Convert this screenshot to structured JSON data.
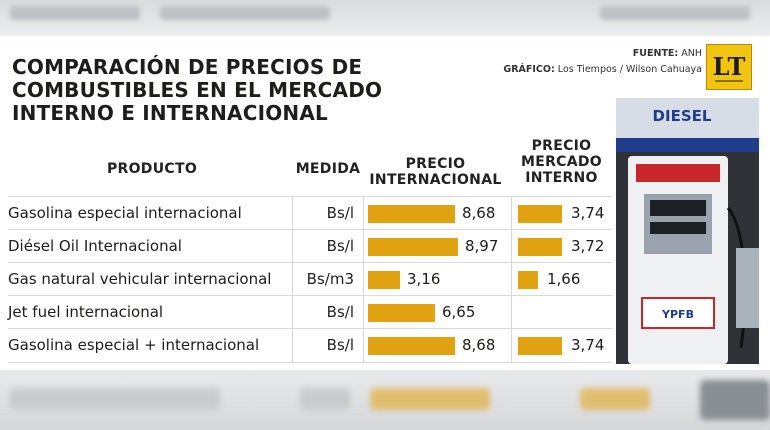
{
  "header": {
    "title": "COMPARACIÓN DE PRECIOS DE COMBUSTIBLES EN EL MERCADO INTERNO E INTERNACIONAL",
    "source_label": "FUENTE:",
    "source_value": "ANH",
    "graphic_label": "GRÁFICO:",
    "graphic_value": "Los Tiempos / Wilson Cahuaya",
    "logo_text": "LT"
  },
  "table": {
    "headers": {
      "product": "PRODUCTO",
      "unit": "MEDIDA",
      "intl": [
        "PRECIO",
        "INTERNACIONAL"
      ],
      "internal": [
        "PRECIO",
        "MERCADO",
        "INTERNO"
      ]
    }
  },
  "photo": {
    "sign_text": "DIESEL",
    "brand_text": "YPFB"
  },
  "chart_data": {
    "type": "table",
    "columns": [
      "PRODUCTO",
      "MEDIDA",
      "PRECIO INTERNACIONAL",
      "PRECIO MERCADO INTERNO"
    ],
    "rows": [
      {
        "product": "Gasolina especial internacional",
        "unit": "Bs/l",
        "intl": 8.68,
        "intl_label": "8,68",
        "internal": 3.74,
        "internal_label": "3,74"
      },
      {
        "product": "Diésel Oil Internacional",
        "unit": "Bs/l",
        "intl": 8.97,
        "intl_label": "8,97",
        "internal": 3.72,
        "internal_label": "3,72"
      },
      {
        "product": "Gas natural vehicular internacional",
        "unit": "Bs/m3",
        "intl": 3.16,
        "intl_label": "3,16",
        "internal": 1.66,
        "internal_label": "1,66"
      },
      {
        "product": "Jet fuel internacional",
        "unit": "Bs/l",
        "intl": 6.65,
        "intl_label": "6,65",
        "internal": null,
        "internal_label": ""
      },
      {
        "product": "Gasolina especial + internacional",
        "unit": "Bs/l",
        "intl": 8.68,
        "intl_label": "8,68",
        "internal": 3.74,
        "internal_label": "3,74"
      }
    ],
    "bar_color": "#e1a212"
  }
}
